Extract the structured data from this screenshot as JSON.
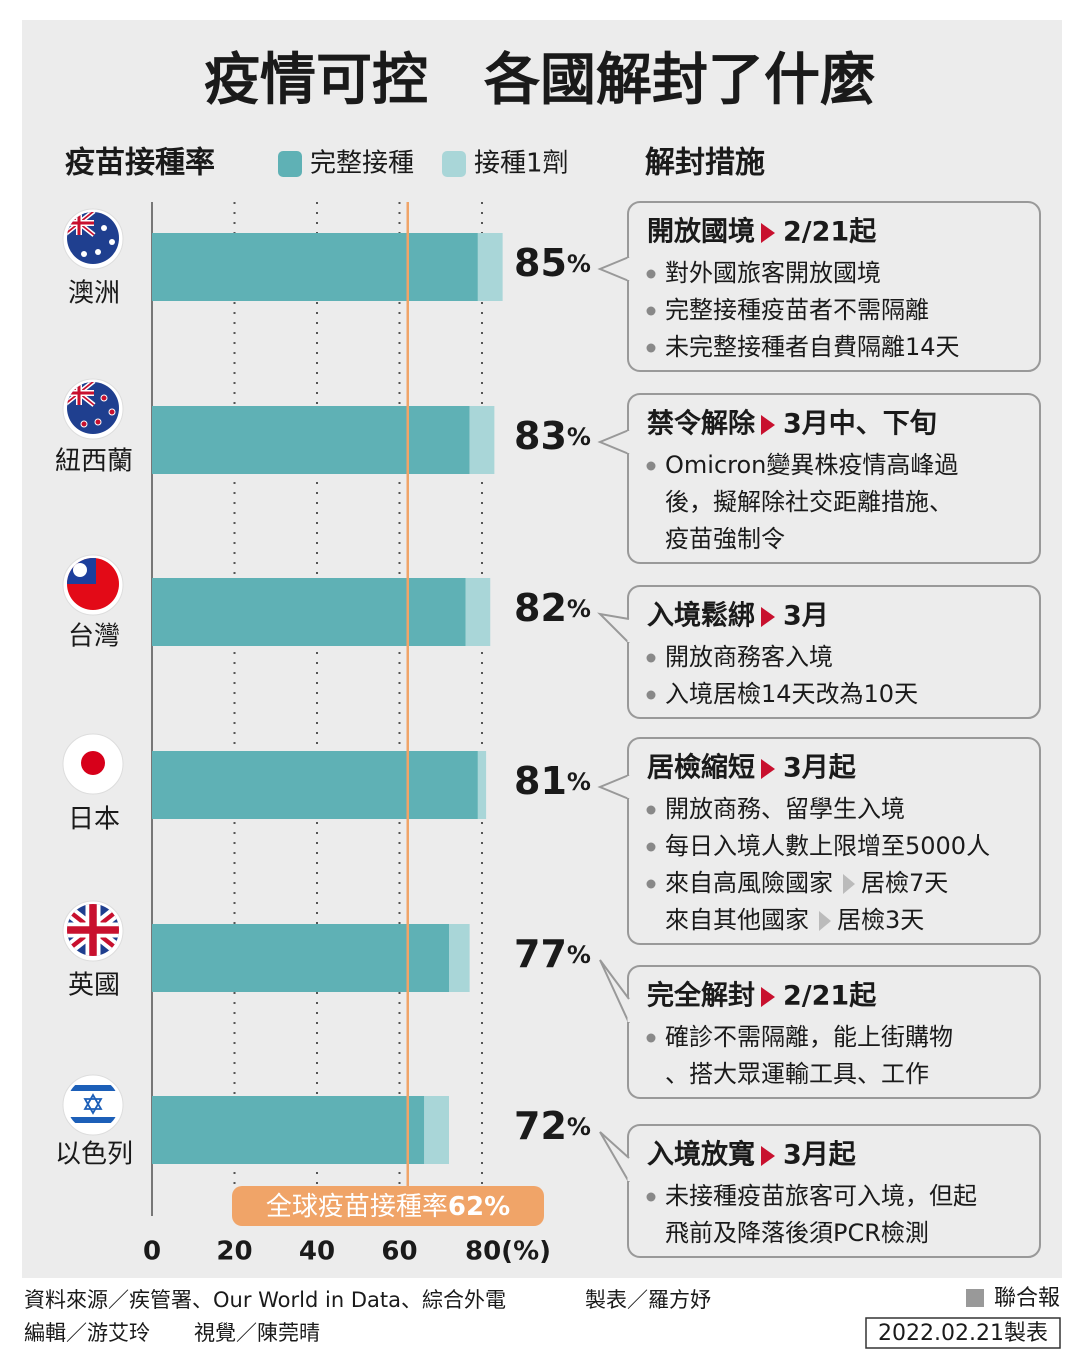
{
  "chart_data": {
    "type": "bar",
    "orientation": "horizontal",
    "stacked": true,
    "title": "疫情可控　各國解封了什麼",
    "legend_title": "疫苗接種率",
    "categories": [
      "澳洲",
      "紐西蘭",
      "台灣",
      "日本",
      "英國",
      "以色列"
    ],
    "series": [
      {
        "name": "完整接種",
        "color": "#5fb1b5",
        "values": [
          79,
          77,
          76,
          79,
          72,
          66
        ]
      },
      {
        "name": "接種1劑",
        "color": "#a9d6d8",
        "values": [
          6,
          6,
          6,
          2,
          5,
          6
        ]
      }
    ],
    "total_labels": [
      {
        "number": "85",
        "unit": "%"
      },
      {
        "number": "83",
        "unit": "%"
      },
      {
        "number": "82",
        "unit": "%"
      },
      {
        "number": "81",
        "unit": "%"
      },
      {
        "number": "77",
        "unit": "%"
      },
      {
        "number": "72",
        "unit": "%"
      }
    ],
    "xlim": [
      0,
      90
    ],
    "xticks": [
      0,
      20,
      40,
      60,
      {
        "value": 80,
        "label": "80(%)"
      }
    ],
    "grid": true,
    "reference_line": {
      "label": "全球疫苗接種率",
      "value": 62,
      "value_label": "62%",
      "color": "#f0a468"
    },
    "measures_title": "解封措施",
    "measures": [
      {
        "title": "開放國境",
        "when": "2/21起",
        "bullets": [
          [
            "對外國旅客開放國境"
          ],
          [
            "完整接種疫苗者不需隔離"
          ],
          [
            "未完整接種者自費隔離14天"
          ]
        ]
      },
      {
        "title": "禁令解除",
        "when": "3月中、下旬",
        "bullets": [
          [
            "Omicron變異株疫情高峰過",
            "後，擬解除社交距離措施、",
            "疫苗強制令"
          ]
        ]
      },
      {
        "title": "入境鬆綁",
        "when": "3月",
        "bullets": [
          [
            "開放商務客入境"
          ],
          [
            "入境居檢14天改為10天"
          ]
        ]
      },
      {
        "title": "居檢縮短",
        "when": "3月起",
        "bullets": [
          [
            "開放商務、留學生入境"
          ],
          [
            "每日入境人數上限增至5000人"
          ],
          [
            [
              "來自高風險國家",
              "居檢7天"
            ],
            [
              "來自其他國家",
              "居檢3天"
            ]
          ]
        ]
      },
      {
        "title": "完全解封",
        "when": "2/21起",
        "bullets": [
          [
            "確診不需隔離，能上街購物",
            "、搭大眾運輸工具、工作"
          ]
        ]
      },
      {
        "title": "入境放寬",
        "when": "3月起",
        "bullets": [
          [
            "未接種疫苗旅客可入境，但起",
            "飛前及降落後須PCR檢測"
          ]
        ]
      }
    ],
    "footer": {
      "source": "資料來源／疾管署、Our World in Data、綜合外電",
      "maker": "製表／羅方妤",
      "editor": "編輯／游艾玲",
      "visual": "視覺／陳莞晴",
      "publisher": "聯合報",
      "date": "2022.02.21製表"
    }
  }
}
